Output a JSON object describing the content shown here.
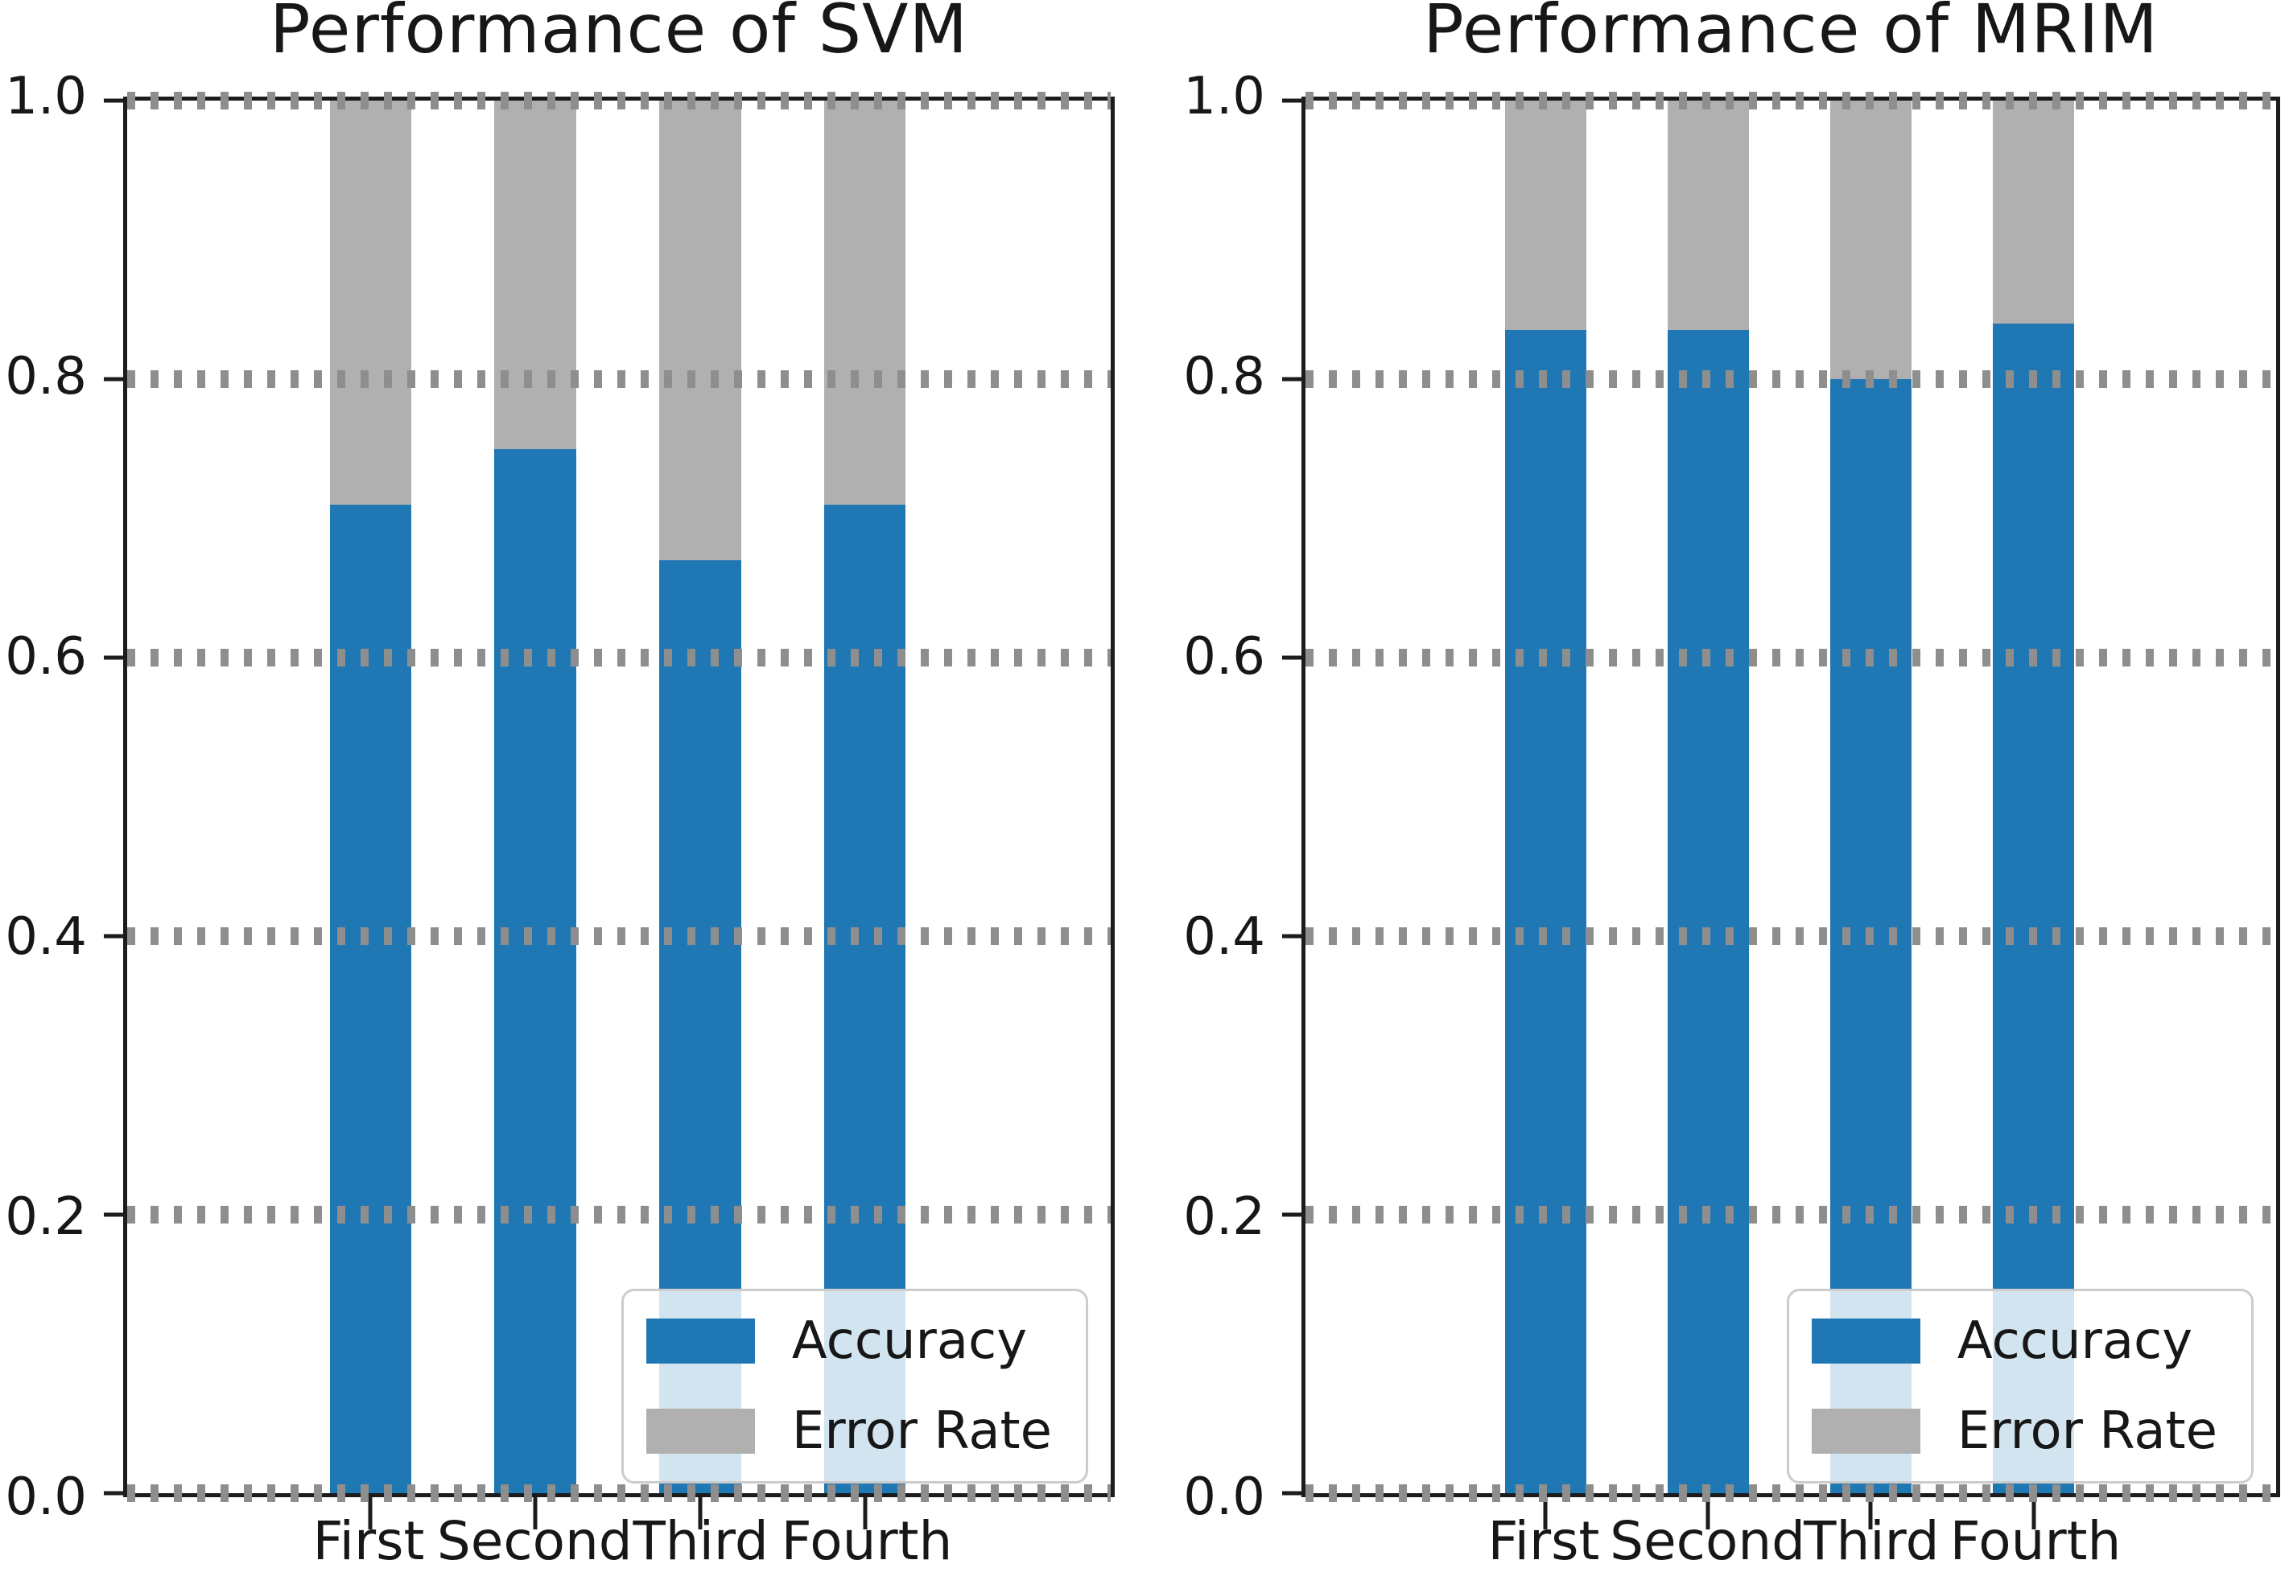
{
  "figure": {
    "background": "#ffffff"
  },
  "colors": {
    "accuracy": "#1f77b4",
    "error_rate": "#b0b0b0",
    "grid": "#8e8e8e",
    "spine": "#1c1c1c",
    "legend_border": "#cccccc",
    "text": "#171717"
  },
  "chart_data": [
    {
      "type": "bar",
      "stacked": true,
      "title": "Performance of SVM",
      "categories": [
        "First",
        "Second",
        "Third",
        "Fourth"
      ],
      "series": [
        {
          "name": "Accuracy",
          "color": "#1f77b4",
          "values": [
            0.71,
            0.75,
            0.67,
            0.71
          ]
        },
        {
          "name": "Error Rate",
          "color": "#b0b0b0",
          "values": [
            0.29,
            0.25,
            0.33,
            0.29
          ]
        }
      ],
      "xlabel": "",
      "ylabel": "",
      "ylim": [
        0.0,
        1.0
      ],
      "yticks": [
        "0.0",
        "0.2",
        "0.4",
        "0.6",
        "0.8",
        "1.0"
      ],
      "grid": "horizontal dotted, drawn above bars",
      "legend_position": "lower right",
      "legend_labels": [
        "Accuracy",
        "Error Rate"
      ]
    },
    {
      "type": "bar",
      "stacked": true,
      "title": "Performance of MRIM",
      "categories": [
        "First",
        "Second",
        "Third",
        "Fourth"
      ],
      "series": [
        {
          "name": "Accuracy",
          "color": "#1f77b4",
          "values": [
            0.835,
            0.835,
            0.8,
            0.84
          ]
        },
        {
          "name": "Error Rate",
          "color": "#b0b0b0",
          "values": [
            0.165,
            0.165,
            0.2,
            0.16
          ]
        }
      ],
      "xlabel": "",
      "ylabel": "",
      "ylim": [
        0.0,
        1.0
      ],
      "yticks": [
        "0.0",
        "0.2",
        "0.4",
        "0.6",
        "0.8",
        "1.0"
      ],
      "grid": "horizontal dotted, drawn above bars",
      "legend_position": "lower right",
      "legend_labels": [
        "Accuracy",
        "Error Rate"
      ]
    }
  ]
}
